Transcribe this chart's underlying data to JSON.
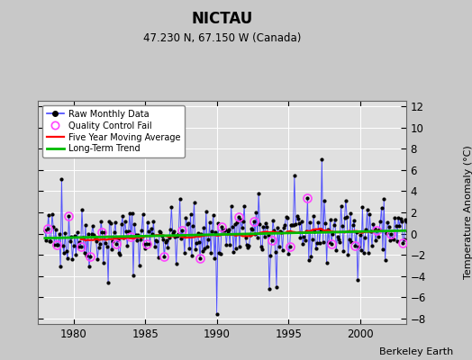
{
  "title": "NICTAU",
  "subtitle": "47.230 N, 67.150 W (Canada)",
  "ylabel": "Temperature Anomaly (°C)",
  "attribution": "Berkeley Earth",
  "ylim": [
    -8.5,
    12.5
  ],
  "xlim": [
    1977.5,
    2003.2
  ],
  "yticks": [
    -8,
    -6,
    -4,
    -2,
    0,
    2,
    4,
    6,
    8,
    10,
    12
  ],
  "xticks": [
    1980,
    1985,
    1990,
    1995,
    2000
  ],
  "bg_color": "#c8c8c8",
  "plot_bg_color": "#e0e0e0",
  "line_color": "#4444ff",
  "marker_color": "#000000",
  "qc_color": "#ff44ff",
  "ma_color": "#ff0000",
  "trend_color": "#00bb00",
  "grid_color": "#ffffff",
  "seed": 42,
  "n_years": 26,
  "start_year": 1978,
  "trend_slope": 0.028,
  "trend_intercept": -0.42
}
